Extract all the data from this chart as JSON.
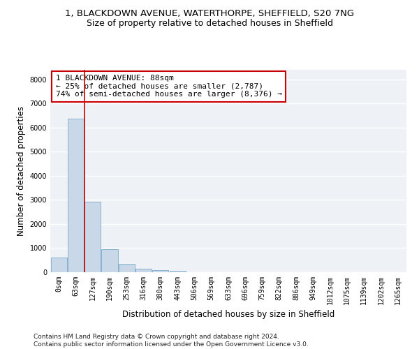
{
  "title_line1": "1, BLACKDOWN AVENUE, WATERTHORPE, SHEFFIELD, S20 7NG",
  "title_line2": "Size of property relative to detached houses in Sheffield",
  "xlabel": "Distribution of detached houses by size in Sheffield",
  "ylabel": "Number of detached properties",
  "bar_color": "#c8d8e8",
  "bar_edge_color": "#7aaac8",
  "vline_color": "#cc0000",
  "vline_x": 1.5,
  "categories": [
    "0sqm",
    "63sqm",
    "127sqm",
    "190sqm",
    "253sqm",
    "316sqm",
    "380sqm",
    "443sqm",
    "506sqm",
    "569sqm",
    "633sqm",
    "696sqm",
    "759sqm",
    "822sqm",
    "886sqm",
    "949sqm",
    "1012sqm",
    "1075sqm",
    "1139sqm",
    "1202sqm",
    "1265sqm"
  ],
  "values": [
    620,
    6380,
    2920,
    960,
    360,
    155,
    80,
    55,
    0,
    0,
    0,
    0,
    0,
    0,
    0,
    0,
    0,
    0,
    0,
    0,
    0
  ],
  "ylim": [
    0,
    8400
  ],
  "yticks": [
    0,
    1000,
    2000,
    3000,
    4000,
    5000,
    6000,
    7000,
    8000
  ],
  "annotation_text": "1 BLACKDOWN AVENUE: 88sqm\n← 25% of detached houses are smaller (2,787)\n74% of semi-detached houses are larger (8,376) →",
  "footnote": "Contains HM Land Registry data © Crown copyright and database right 2024.\nContains public sector information licensed under the Open Government Licence v3.0.",
  "background_color": "#eef2f7",
  "grid_color": "#ffffff",
  "title_fontsize": 9.5,
  "subtitle_fontsize": 9,
  "axis_label_fontsize": 8.5,
  "tick_fontsize": 7,
  "annotation_fontsize": 8,
  "footnote_fontsize": 6.5
}
